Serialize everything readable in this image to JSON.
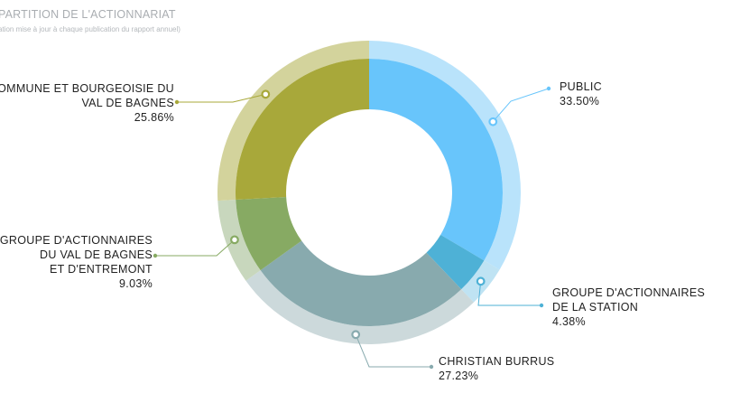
{
  "title": "PARTITION DE L'ACTIONNARIAT",
  "subtitle": "ation mise à jour à chaque publication du rapport annuel)",
  "chart_data": {
    "type": "pie",
    "title": "PARTITION DE L'ACTIONNARIAT",
    "series": [
      {
        "name": "PUBLIC",
        "lines": [
          "PUBLIC"
        ],
        "value": 33.5,
        "label": "33.50%",
        "color": "#68c5fb",
        "outer_color": "#b9e3fb"
      },
      {
        "name": "GROUPE D'ACTIONNAIRES DE LA STATION",
        "lines": [
          "GROUPE D'ACTIONNAIRES",
          "DE LA STATION"
        ],
        "value": 4.38,
        "label": "4.38%",
        "color": "#4eb1d6",
        "outer_color": "#bfe3f3"
      },
      {
        "name": "CHRISTIAN BURRUS",
        "lines": [
          "CHRISTIAN BURRUS"
        ],
        "value": 27.23,
        "label": "27.23%",
        "color": "#88aaae",
        "outer_color": "#ccd9db"
      },
      {
        "name": "GROUPE D'ACTIONNAIRES DU VAL DE BAGNES ET D'ENTREMONT",
        "lines": [
          "GROUPE D'ACTIONNAIRES",
          "DU VAL DE BAGNES",
          "ET D'ENTREMONT"
        ],
        "value": 9.03,
        "label": "9.03%",
        "color": "#87aa63",
        "outer_color": "#c8d7bd"
      },
      {
        "name": "COMMUNE ET BOURGEOISIE DU VAL DE BAGNES",
        "lines": [
          "COMMUNE ET BOURGEOISIE DU",
          "VAL DE BAGNES"
        ],
        "value": 25.86,
        "label": "25.86%",
        "color": "#a8a83a",
        "outer_color": "#d3d39c"
      }
    ]
  }
}
